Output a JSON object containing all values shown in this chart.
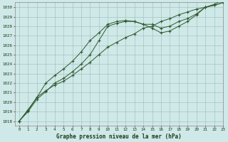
{
  "title": "Graphe pression niveau de la mer (hPa)",
  "bg_color": "#cfe8e8",
  "grid_color": "#a0b8b8",
  "line_color": "#2d5a2d",
  "ylim": [
    1017.5,
    1030.5
  ],
  "xlim": [
    -0.5,
    23
  ],
  "yticks": [
    1018,
    1019,
    1020,
    1021,
    1022,
    1023,
    1024,
    1025,
    1026,
    1027,
    1028,
    1029,
    1030
  ],
  "xticks": [
    0,
    1,
    2,
    3,
    4,
    5,
    6,
    7,
    8,
    9,
    10,
    11,
    12,
    13,
    14,
    15,
    16,
    17,
    18,
    19,
    20,
    21,
    22,
    23
  ],
  "s1_x": [
    0,
    1,
    2,
    3,
    4,
    5,
    6,
    7,
    8,
    9,
    10,
    11,
    12,
    13,
    14,
    15,
    16,
    17,
    18,
    19,
    20,
    21,
    22,
    23
  ],
  "s1_y": [
    1018.0,
    1019.0,
    1020.3,
    1021.1,
    1022.0,
    1022.5,
    1023.2,
    1024.0,
    1025.0,
    1026.5,
    1028.0,
    1028.3,
    1028.5,
    1028.5,
    1028.2,
    1028.2,
    1027.8,
    1028.0,
    1028.5,
    1028.8,
    1029.3,
    1030.0,
    1030.2,
    1030.5
  ],
  "s2_x": [
    0,
    1,
    2,
    3,
    4,
    5,
    6,
    7,
    8,
    9,
    10,
    11,
    12,
    13,
    14,
    15,
    16,
    17,
    18,
    19,
    20,
    21,
    22,
    23
  ],
  "s2_y": [
    1018.0,
    1019.2,
    1020.5,
    1022.0,
    1022.8,
    1023.5,
    1024.3,
    1025.3,
    1026.5,
    1027.3,
    1028.2,
    1028.5,
    1028.6,
    1028.5,
    1028.2,
    1027.8,
    1027.3,
    1027.5,
    1028.0,
    1028.5,
    1029.2,
    1030.0,
    1030.3,
    1030.8
  ],
  "s3_x": [
    0,
    1,
    2,
    3,
    4,
    5,
    6,
    7,
    8,
    9,
    10,
    11,
    12,
    13,
    14,
    15,
    16,
    17,
    18,
    19,
    20,
    21,
    22,
    23
  ],
  "s3_y": [
    1018.0,
    1019.1,
    1020.5,
    1021.2,
    1021.8,
    1022.2,
    1022.8,
    1023.5,
    1024.2,
    1025.0,
    1025.8,
    1026.3,
    1026.8,
    1027.2,
    1027.8,
    1028.0,
    1028.5,
    1028.8,
    1029.2,
    1029.5,
    1029.8,
    1030.0,
    1030.2,
    1030.5
  ]
}
